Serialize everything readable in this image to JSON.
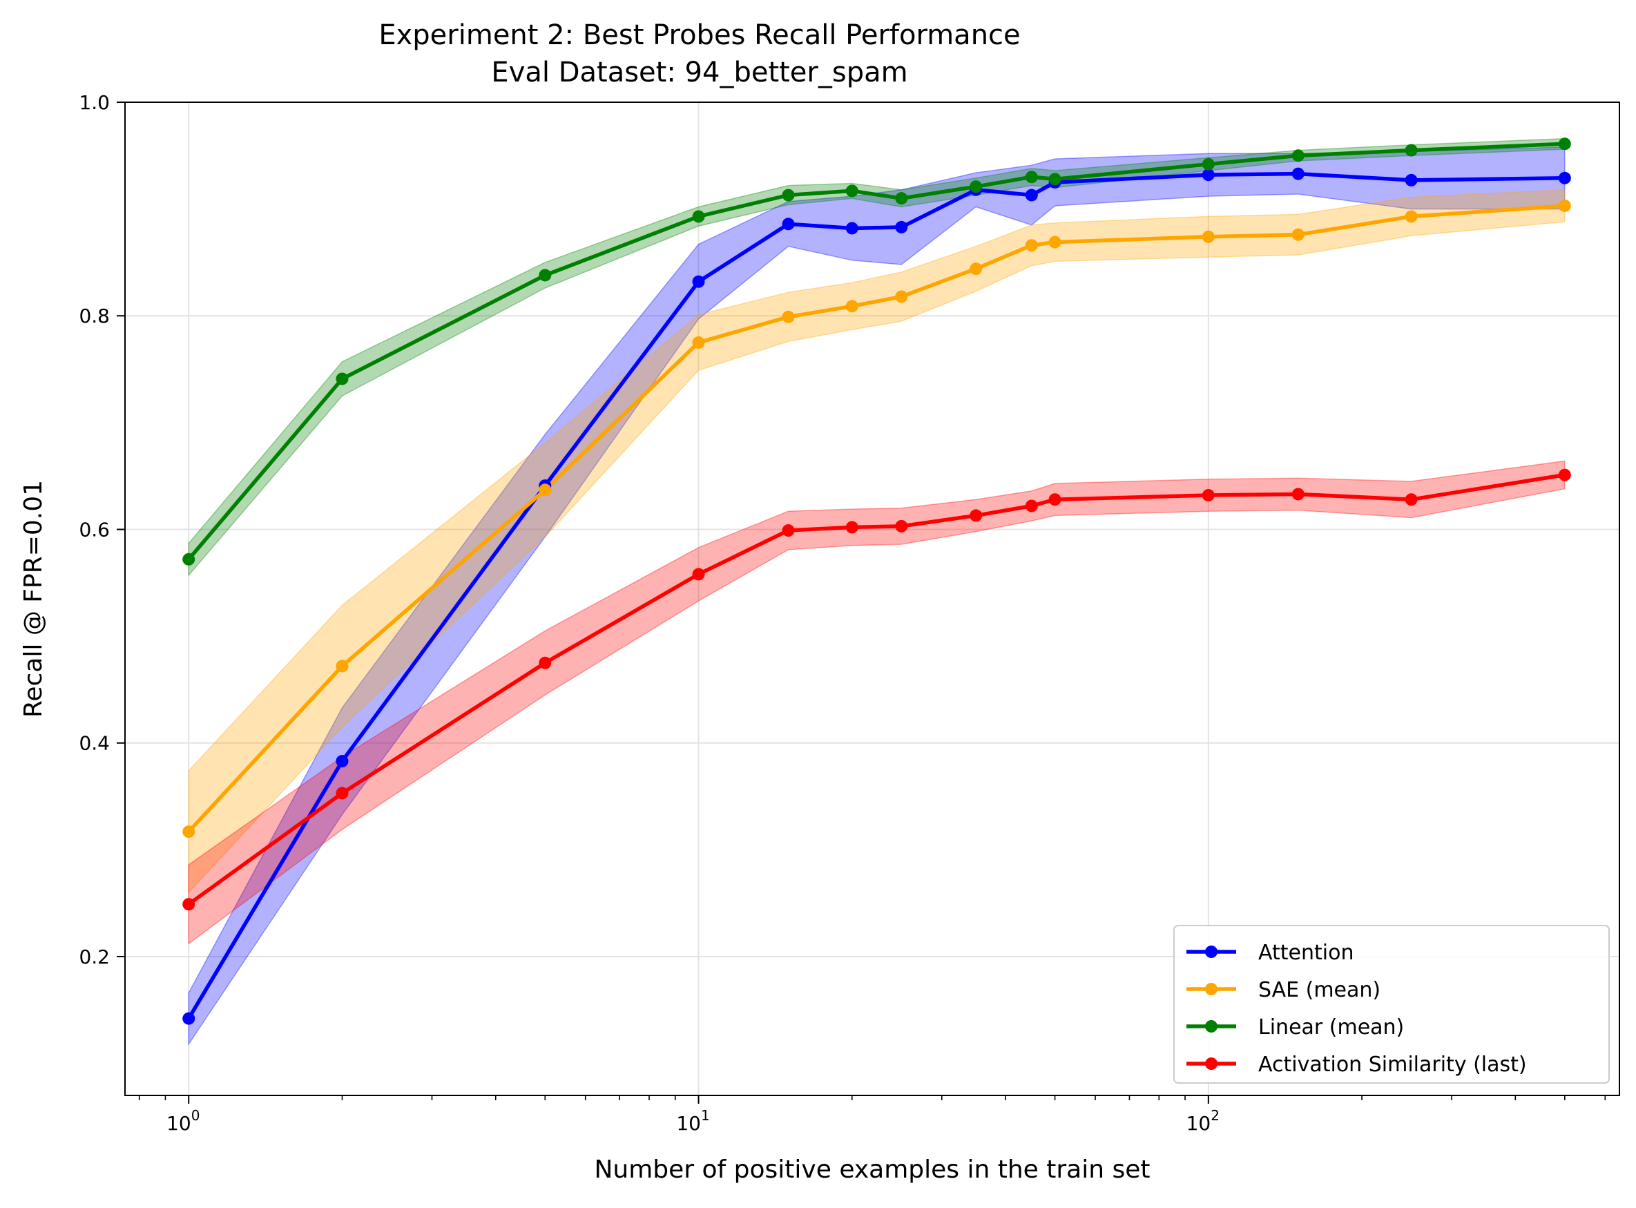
{
  "chart_data": {
    "type": "line",
    "title": "Experiment 2: Best Probes Recall Performance",
    "subtitle": "Eval Dataset: 94_better_spam",
    "xlabel": "Number of positive examples in the train set",
    "ylabel": "Recall @ FPR=0.01",
    "xscale": "log",
    "xlim": [
      0.75,
      640
    ],
    "ylim": [
      0.07,
      1.0
    ],
    "x_ticks": [
      {
        "value": 1,
        "base": "10",
        "exp": "0"
      },
      {
        "value": 10,
        "base": "10",
        "exp": "1"
      },
      {
        "value": 100,
        "base": "10",
        "exp": "2"
      }
    ],
    "y_ticks": [
      {
        "value": 0.2,
        "label": "0.2"
      },
      {
        "value": 0.4,
        "label": "0.4"
      },
      {
        "value": 0.6,
        "label": "0.6"
      },
      {
        "value": 0.8,
        "label": "0.8"
      },
      {
        "value": 1.0,
        "label": "1.0"
      }
    ],
    "grid": true,
    "legend_position": "bottom-right",
    "series": [
      {
        "name": "Attention",
        "color": "#0000ff",
        "x": [
          1,
          2,
          5,
          10,
          15,
          20,
          25,
          35,
          45,
          50,
          100,
          150,
          250,
          500
        ],
        "y": [
          0.142,
          0.383,
          0.641,
          0.832,
          0.886,
          0.882,
          0.883,
          0.918,
          0.913,
          0.925,
          0.932,
          0.933,
          0.927,
          0.929
        ],
        "lower": [
          0.118,
          0.333,
          0.593,
          0.797,
          0.865,
          0.852,
          0.848,
          0.902,
          0.885,
          0.903,
          0.912,
          0.914,
          0.9,
          0.9
        ],
        "upper": [
          0.166,
          0.433,
          0.689,
          0.867,
          0.907,
          0.912,
          0.918,
          0.934,
          0.941,
          0.947,
          0.952,
          0.952,
          0.954,
          0.958
        ]
      },
      {
        "name": "SAE (mean)",
        "color": "#ffa500",
        "x": [
          1,
          2,
          5,
          10,
          15,
          20,
          25,
          35,
          45,
          50,
          100,
          150,
          250,
          500
        ],
        "y": [
          0.317,
          0.472,
          0.637,
          0.775,
          0.799,
          0.809,
          0.818,
          0.844,
          0.866,
          0.869,
          0.874,
          0.876,
          0.893,
          0.903
        ],
        "lower": [
          0.26,
          0.415,
          0.593,
          0.749,
          0.776,
          0.787,
          0.795,
          0.823,
          0.847,
          0.851,
          0.855,
          0.857,
          0.875,
          0.888
        ],
        "upper": [
          0.374,
          0.529,
          0.681,
          0.801,
          0.822,
          0.831,
          0.841,
          0.865,
          0.885,
          0.887,
          0.893,
          0.895,
          0.911,
          0.918
        ]
      },
      {
        "name": "Linear (mean)",
        "color": "#008000",
        "x": [
          1,
          2,
          5,
          10,
          15,
          20,
          25,
          35,
          45,
          50,
          100,
          150,
          250,
          500
        ],
        "y": [
          0.572,
          0.741,
          0.838,
          0.893,
          0.913,
          0.917,
          0.91,
          0.921,
          0.93,
          0.928,
          0.942,
          0.95,
          0.955,
          0.961
        ],
        "lower": [
          0.557,
          0.725,
          0.826,
          0.884,
          0.904,
          0.91,
          0.902,
          0.913,
          0.922,
          0.92,
          0.936,
          0.945,
          0.95,
          0.956
        ],
        "upper": [
          0.587,
          0.757,
          0.85,
          0.902,
          0.922,
          0.924,
          0.918,
          0.929,
          0.938,
          0.936,
          0.948,
          0.955,
          0.96,
          0.966
        ]
      },
      {
        "name": "Activation Similarity (last)",
        "color": "#ff0000",
        "x": [
          1,
          2,
          5,
          10,
          15,
          20,
          25,
          35,
          45,
          50,
          100,
          150,
          250,
          500
        ],
        "y": [
          0.249,
          0.353,
          0.475,
          0.558,
          0.599,
          0.602,
          0.603,
          0.613,
          0.622,
          0.628,
          0.632,
          0.633,
          0.628,
          0.651
        ],
        "lower": [
          0.212,
          0.319,
          0.445,
          0.533,
          0.581,
          0.585,
          0.586,
          0.598,
          0.608,
          0.613,
          0.617,
          0.618,
          0.611,
          0.638
        ],
        "upper": [
          0.286,
          0.387,
          0.505,
          0.583,
          0.617,
          0.619,
          0.62,
          0.628,
          0.636,
          0.643,
          0.647,
          0.648,
          0.645,
          0.664
        ]
      }
    ]
  }
}
